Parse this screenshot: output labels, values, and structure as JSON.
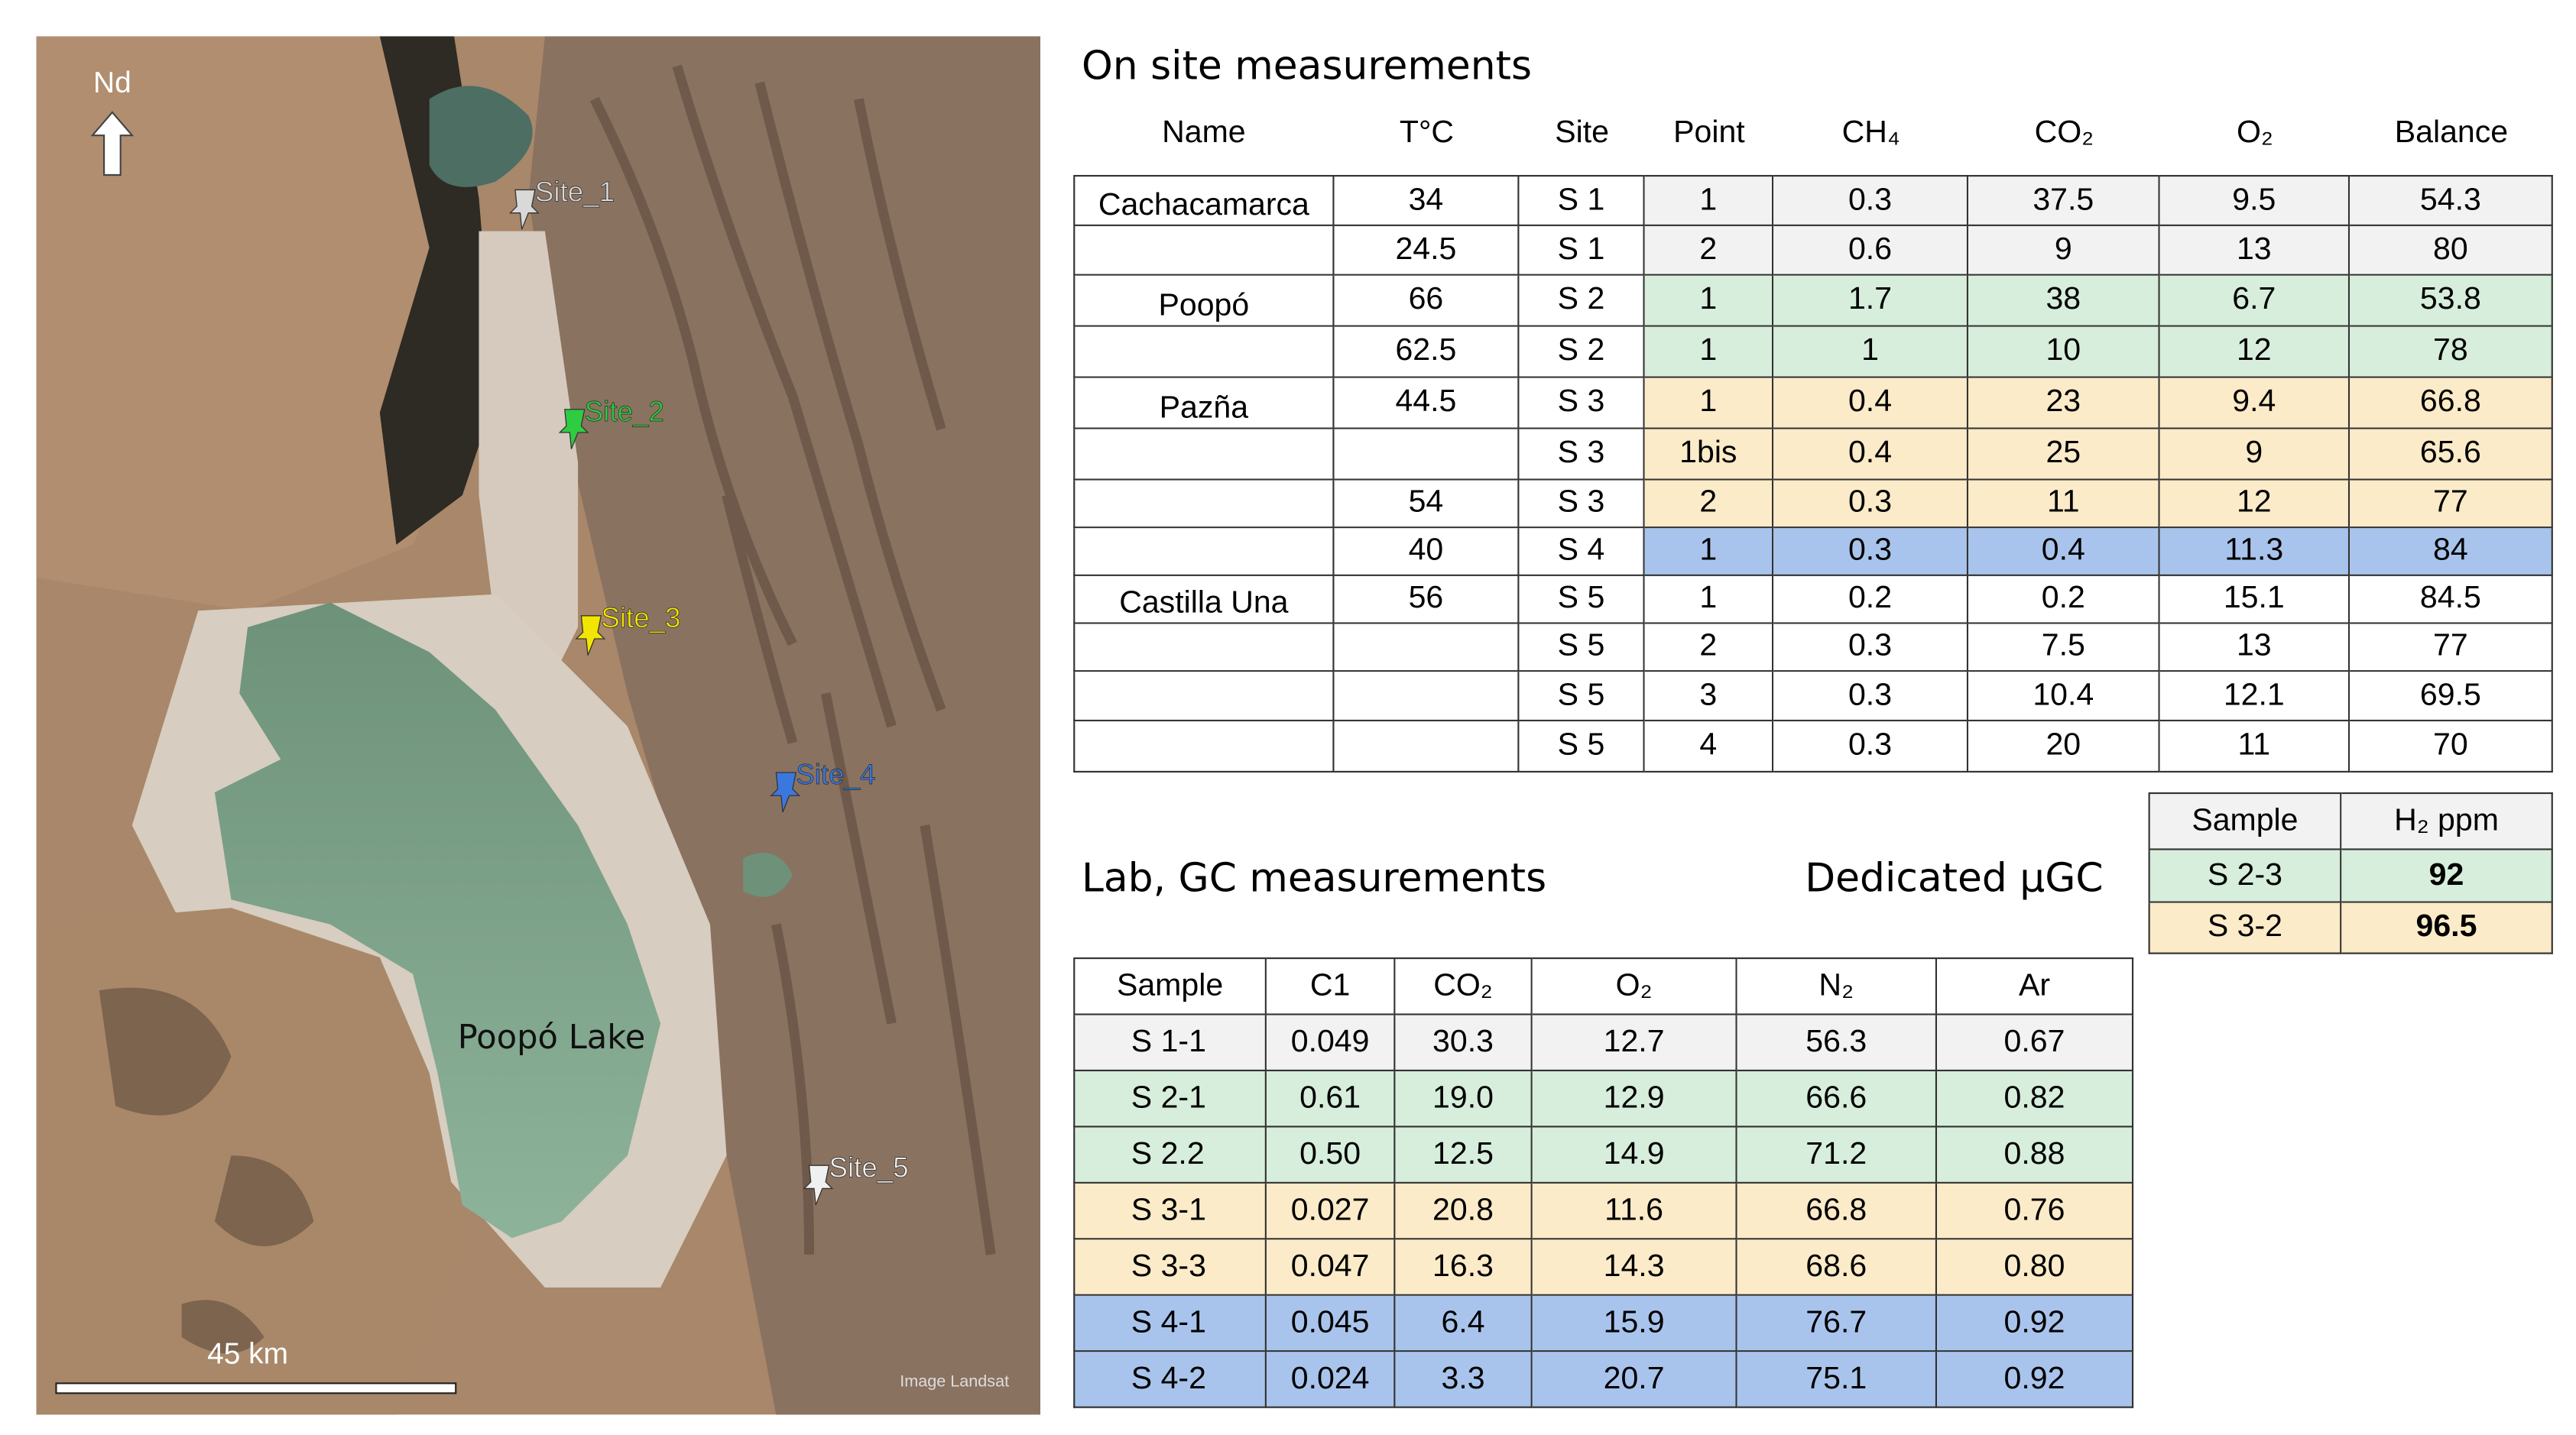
{
  "map": {
    "north_label": "Nd",
    "sites": [
      {
        "label": "Site_1",
        "color": "#d9d9d9"
      },
      {
        "label": "Site_2",
        "color": "#2ecc40"
      },
      {
        "label": "Site_3",
        "color": "#f2e600"
      },
      {
        "label": "Site_4",
        "color": "#3a78de"
      },
      {
        "label": "Site_5",
        "color": "#f0f0f0"
      }
    ],
    "lake_label": "Poopó  Lake",
    "scale_label": "45 km",
    "credit": "Image Landsat"
  },
  "on_site": {
    "title": "On site measurements",
    "columns": [
      "Name",
      "T°C",
      "Site",
      "Point",
      "CH₄",
      "CO₂",
      "O₂",
      "Balance"
    ],
    "rows": [
      [
        "Cachacamarca",
        "34",
        "S 1",
        "1",
        "0.3",
        "37.5",
        "9.5",
        "54.3"
      ],
      [
        null,
        "24.5",
        "S 1",
        "2",
        "0.6",
        "9",
        "13",
        "80"
      ],
      [
        "Poopó",
        "66",
        "S 2",
        "1",
        "1.7",
        "38",
        "6.7",
        "53.8"
      ],
      [
        null,
        "62.5",
        "S 2",
        "1",
        "1",
        "10",
        "12",
        "78"
      ],
      [
        "Pazña",
        "44.5",
        "S 3",
        "1",
        "0.4",
        "23",
        "9.4",
        "66.8"
      ],
      [
        null,
        null,
        "S 3",
        "1bis",
        "0.4",
        "25",
        "9",
        "65.6"
      ],
      [
        null,
        "54",
        "S 3",
        "2",
        "0.3",
        "11",
        "12",
        "77"
      ],
      [
        null,
        "40",
        "S 4",
        "1",
        "0.3",
        "0.4",
        "11.3",
        "84"
      ],
      [
        "Castilla Una",
        "56",
        "S 5",
        "1",
        "0.2",
        "0.2",
        "15.1",
        "84.5"
      ],
      [
        null,
        null,
        "S 5",
        "2",
        "0.3",
        "7.5",
        "13",
        "77"
      ],
      [
        null,
        null,
        "S 5",
        "3",
        "0.3",
        "10.4",
        "12.1",
        "69.5"
      ],
      [
        null,
        null,
        "S 5",
        "4",
        "0.3",
        "20",
        "11",
        "70"
      ]
    ],
    "row_colors": [
      "#f2f2f2",
      "#f2f2f2",
      "#d6eedb",
      "#d6eedb",
      "#fcebc8",
      "#fcebc8",
      "#fcebc8",
      "#a9c4ec",
      null,
      null,
      null,
      null
    ]
  },
  "h2": {
    "title": "Dedicated µGC",
    "columns": [
      "Sample",
      "H₂ ppm"
    ],
    "rows": [
      [
        "S 2-3",
        "92"
      ],
      [
        "S 3-2",
        "96.5"
      ]
    ],
    "header_color": "#f2f2f2",
    "row_colors": [
      "#d6eedb",
      "#fcebc8"
    ]
  },
  "lab": {
    "title": "Lab, GC measurements",
    "columns": [
      "Sample",
      "C1",
      "CO₂",
      "O₂",
      "N₂",
      "Ar"
    ],
    "rows": [
      [
        "S 1-1",
        "0.049",
        "30.3",
        "12.7",
        "56.3",
        "0.67"
      ],
      [
        "S 2-1",
        "0.61",
        "19.0",
        "12.9",
        "66.6",
        "0.82"
      ],
      [
        "S 2.2",
        "0.50",
        "12.5",
        "14.9",
        "71.2",
        "0.88"
      ],
      [
        "S 3-1",
        "0.027",
        "20.8",
        "11.6",
        "66.8",
        "0.76"
      ],
      [
        "S 3-3",
        "0.047",
        "16.3",
        "14.3",
        "68.6",
        "0.80"
      ],
      [
        "S 4-1",
        "0.045",
        "6.4",
        "15.9",
        "76.7",
        "0.92"
      ],
      [
        "S 4-2",
        "0.024",
        "3.3",
        "20.7",
        "75.1",
        "0.92"
      ]
    ],
    "row_colors": [
      "#f2f2f2",
      "#d6eedb",
      "#d6eedb",
      "#fcebc8",
      "#fcebc8",
      "#a9c4ec",
      "#a9c4ec"
    ]
  }
}
